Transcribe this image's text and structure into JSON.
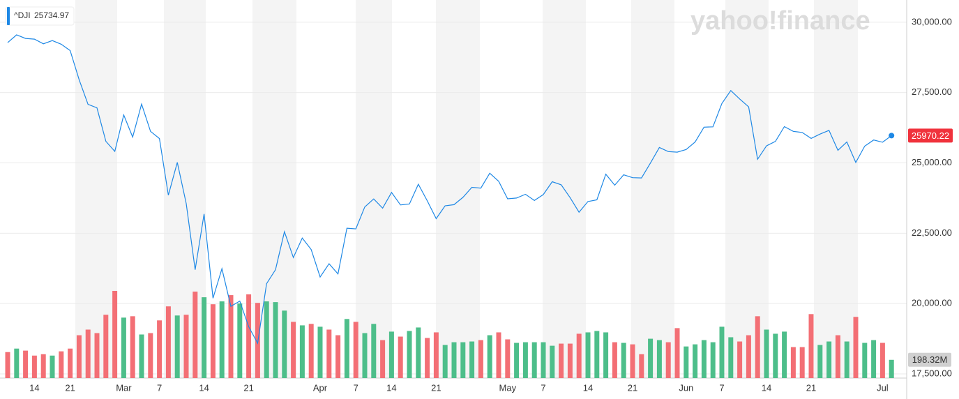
{
  "chart_data": {
    "type": "line",
    "watermark": "yahoo!finance",
    "categories": [
      null,
      null,
      null,
      "14",
      null,
      null,
      null,
      "21",
      null,
      null,
      null,
      null,
      null,
      "Mar",
      null,
      null,
      null,
      "7",
      null,
      null,
      null,
      null,
      "14",
      null,
      null,
      null,
      null,
      "21",
      null,
      null,
      null,
      null,
      null,
      null,
      null,
      "Apr",
      null,
      null,
      null,
      "7",
      null,
      null,
      null,
      "14",
      null,
      null,
      null,
      null,
      "21",
      null,
      null,
      null,
      null,
      null,
      null,
      null,
      "May",
      null,
      null,
      null,
      "7",
      null,
      null,
      null,
      null,
      "14",
      null,
      null,
      null,
      null,
      "21",
      null,
      null,
      null,
      null,
      null,
      "Jun",
      null,
      null,
      null,
      "7",
      null,
      null,
      null,
      null,
      "14",
      null,
      null,
      null,
      null,
      "21",
      null,
      null,
      null,
      null,
      null,
      null,
      null,
      "Jul",
      null
    ],
    "series": [
      {
        "name": "^DJI",
        "color": "#1e88e5",
        "values": [
          29276,
          29551,
          29423,
          29398,
          29232,
          29348,
          29219,
          28992,
          27961,
          27081,
          26957,
          25766,
          25409,
          26703,
          25917,
          27091,
          26121,
          25865,
          23851,
          25018,
          23553,
          21200,
          23185,
          20189,
          21237,
          19899,
          20087,
          19174,
          18591,
          20704,
          21200,
          22552,
          21636,
          22327,
          21917,
          20943,
          21413,
          21052,
          22680,
          22653,
          23433,
          23719,
          23390,
          23949,
          23504,
          23537,
          24242,
          23650,
          23018,
          23475,
          23515,
          23775,
          24133,
          24101,
          24634,
          24345,
          23723,
          23749,
          23883,
          23664,
          23875,
          24331,
          24221,
          23764,
          23247,
          23625,
          23685,
          24597,
          24207,
          24576,
          24474,
          24465,
          24995,
          25548,
          25401,
          25383,
          25475,
          25742,
          26270,
          26282,
          27111,
          27572,
          27272,
          26990,
          25128,
          25606,
          25763,
          26290,
          26120,
          26080,
          25871,
          26025,
          26156,
          25446,
          25745,
          25016,
          25596,
          25813,
          25734.97,
          25970.22
        ]
      }
    ],
    "volume": {
      "values": [
        282,
        320,
        298,
        244,
        259,
        244,
        290,
        320,
        465,
        526,
        488,
        687,
        946,
        656,
        671,
        473,
        488,
        626,
        778,
        679,
        687,
        938,
        877,
        801,
        832,
        900,
        809,
        908,
        816,
        832,
        824,
        732,
        610,
        572,
        588,
        557,
        526,
        465,
        641,
        610,
        488,
        588,
        412,
        504,
        450,
        511,
        549,
        435,
        496,
        359,
        389,
        389,
        397,
        412,
        465,
        496,
        420,
        382,
        389,
        389,
        389,
        351,
        374,
        374,
        481,
        496,
        511,
        496,
        389,
        382,
        366,
        259,
        427,
        412,
        389,
        542,
        343,
        366,
        412,
        389,
        557,
        443,
        397,
        465,
        671,
        526,
        481,
        504,
        336,
        336,
        694,
        359,
        397,
        465,
        397,
        664,
        382,
        412,
        382,
        198.32
      ],
      "value_labels": [
        null,
        null,
        null,
        null,
        null,
        null,
        null,
        null,
        null,
        null,
        null,
        null,
        null,
        null,
        null,
        null,
        null,
        null,
        null,
        null,
        null,
        null,
        null,
        null,
        null,
        null,
        null,
        null,
        null,
        null,
        null,
        null,
        null,
        null,
        null,
        null,
        null,
        null,
        null,
        null,
        null,
        null,
        null,
        null,
        null,
        null,
        null,
        null,
        null,
        null,
        null,
        null,
        null,
        null,
        null,
        null,
        null,
        null,
        null,
        null,
        null,
        null,
        null,
        null,
        null,
        null,
        null,
        null,
        null,
        null,
        null,
        null,
        null,
        null,
        null,
        null,
        null,
        null,
        null,
        null,
        null,
        null,
        null,
        null,
        null,
        null,
        null,
        null,
        null,
        null,
        null,
        null,
        null,
        null,
        null,
        null,
        null,
        null,
        null,
        "198.32M"
      ],
      "colors": [
        "#f36f75",
        "#4dbe8a",
        "#f36f75",
        "#f36f75",
        "#f36f75",
        "#4dbe8a",
        "#f36f75",
        "#f36f75",
        "#f36f75",
        "#f36f75",
        "#f36f75",
        "#f36f75",
        "#f36f75",
        "#4dbe8a",
        "#f36f75",
        "#4dbe8a",
        "#f36f75",
        "#f36f75",
        "#f36f75",
        "#4dbe8a",
        "#f36f75",
        "#f36f75",
        "#4dbe8a",
        "#f36f75",
        "#4dbe8a",
        "#f36f75",
        "#4dbe8a",
        "#f36f75",
        "#f36f75",
        "#4dbe8a",
        "#4dbe8a",
        "#4dbe8a",
        "#f36f75",
        "#4dbe8a",
        "#f36f75",
        "#4dbe8a",
        "#f36f75",
        "#f36f75",
        "#4dbe8a",
        "#f36f75",
        "#4dbe8a",
        "#4dbe8a",
        "#f36f75",
        "#4dbe8a",
        "#f36f75",
        "#4dbe8a",
        "#4dbe8a",
        "#f36f75",
        "#f36f75",
        "#4dbe8a",
        "#4dbe8a",
        "#4dbe8a",
        "#4dbe8a",
        "#f36f75",
        "#4dbe8a",
        "#f36f75",
        "#f36f75",
        "#4dbe8a",
        "#4dbe8a",
        "#4dbe8a",
        "#4dbe8a",
        "#4dbe8a",
        "#f36f75",
        "#f36f75",
        "#f36f75",
        "#4dbe8a",
        "#4dbe8a",
        "#4dbe8a",
        "#f36f75",
        "#4dbe8a",
        "#f36f75",
        "#f36f75",
        "#4dbe8a",
        "#4dbe8a",
        "#f36f75",
        "#f36f75",
        "#4dbe8a",
        "#4dbe8a",
        "#4dbe8a",
        "#4dbe8a",
        "#4dbe8a",
        "#4dbe8a",
        "#f36f75",
        "#f36f75",
        "#f36f75",
        "#4dbe8a",
        "#4dbe8a",
        "#4dbe8a",
        "#f36f75",
        "#f36f75",
        "#f36f75",
        "#4dbe8a",
        "#4dbe8a",
        "#f36f75",
        "#4dbe8a",
        "#f36f75",
        "#4dbe8a",
        "#4dbe8a",
        "#f36f75",
        "#4dbe8a"
      ]
    },
    "last_price_color": "#f0323c",
    "ylim": [
      17350,
      30790
    ],
    "yticks": [
      {
        "value": 30000,
        "label": "30,000.00"
      },
      {
        "value": 27500,
        "label": "27,500.00"
      },
      {
        "value": 25000,
        "label": "25,000.00"
      },
      {
        "value": 22500,
        "label": "22,500.00"
      },
      {
        "value": 20000,
        "label": "20,000.00"
      },
      {
        "value": 17500,
        "label": "17,500.00"
      }
    ],
    "grid": true
  }
}
